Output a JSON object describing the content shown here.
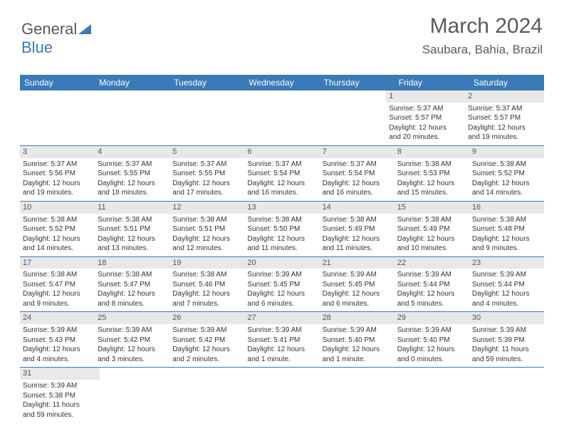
{
  "logo": {
    "text1": "General",
    "text2": "Blue"
  },
  "header": {
    "month_year": "March 2024",
    "location": "Saubara, Bahia, Brazil"
  },
  "colors": {
    "header_bg": "#3a7ab8",
    "header_text": "#ffffff",
    "daynum_bg": "#e8e8e8",
    "week_border": "#3a7ab8",
    "page_bg": "#ffffff",
    "text": "#333333"
  },
  "day_labels": [
    "Sunday",
    "Monday",
    "Tuesday",
    "Wednesday",
    "Thursday",
    "Friday",
    "Saturday"
  ],
  "weeks": [
    [
      null,
      null,
      null,
      null,
      null,
      {
        "n": "1",
        "sr": "Sunrise: 5:37 AM",
        "ss": "Sunset: 5:57 PM",
        "d1": "Daylight: 12 hours",
        "d2": "and 20 minutes."
      },
      {
        "n": "2",
        "sr": "Sunrise: 5:37 AM",
        "ss": "Sunset: 5:57 PM",
        "d1": "Daylight: 12 hours",
        "d2": "and 19 minutes."
      }
    ],
    [
      {
        "n": "3",
        "sr": "Sunrise: 5:37 AM",
        "ss": "Sunset: 5:56 PM",
        "d1": "Daylight: 12 hours",
        "d2": "and 19 minutes."
      },
      {
        "n": "4",
        "sr": "Sunrise: 5:37 AM",
        "ss": "Sunset: 5:55 PM",
        "d1": "Daylight: 12 hours",
        "d2": "and 18 minutes."
      },
      {
        "n": "5",
        "sr": "Sunrise: 5:37 AM",
        "ss": "Sunset: 5:55 PM",
        "d1": "Daylight: 12 hours",
        "d2": "and 17 minutes."
      },
      {
        "n": "6",
        "sr": "Sunrise: 5:37 AM",
        "ss": "Sunset: 5:54 PM",
        "d1": "Daylight: 12 hours",
        "d2": "and 16 minutes."
      },
      {
        "n": "7",
        "sr": "Sunrise: 5:37 AM",
        "ss": "Sunset: 5:54 PM",
        "d1": "Daylight: 12 hours",
        "d2": "and 16 minutes."
      },
      {
        "n": "8",
        "sr": "Sunrise: 5:38 AM",
        "ss": "Sunset: 5:53 PM",
        "d1": "Daylight: 12 hours",
        "d2": "and 15 minutes."
      },
      {
        "n": "9",
        "sr": "Sunrise: 5:38 AM",
        "ss": "Sunset: 5:52 PM",
        "d1": "Daylight: 12 hours",
        "d2": "and 14 minutes."
      }
    ],
    [
      {
        "n": "10",
        "sr": "Sunrise: 5:38 AM",
        "ss": "Sunset: 5:52 PM",
        "d1": "Daylight: 12 hours",
        "d2": "and 14 minutes."
      },
      {
        "n": "11",
        "sr": "Sunrise: 5:38 AM",
        "ss": "Sunset: 5:51 PM",
        "d1": "Daylight: 12 hours",
        "d2": "and 13 minutes."
      },
      {
        "n": "12",
        "sr": "Sunrise: 5:38 AM",
        "ss": "Sunset: 5:51 PM",
        "d1": "Daylight: 12 hours",
        "d2": "and 12 minutes."
      },
      {
        "n": "13",
        "sr": "Sunrise: 5:38 AM",
        "ss": "Sunset: 5:50 PM",
        "d1": "Daylight: 12 hours",
        "d2": "and 11 minutes."
      },
      {
        "n": "14",
        "sr": "Sunrise: 5:38 AM",
        "ss": "Sunset: 5:49 PM",
        "d1": "Daylight: 12 hours",
        "d2": "and 11 minutes."
      },
      {
        "n": "15",
        "sr": "Sunrise: 5:38 AM",
        "ss": "Sunset: 5:49 PM",
        "d1": "Daylight: 12 hours",
        "d2": "and 10 minutes."
      },
      {
        "n": "16",
        "sr": "Sunrise: 5:38 AM",
        "ss": "Sunset: 5:48 PM",
        "d1": "Daylight: 12 hours",
        "d2": "and 9 minutes."
      }
    ],
    [
      {
        "n": "17",
        "sr": "Sunrise: 5:38 AM",
        "ss": "Sunset: 5:47 PM",
        "d1": "Daylight: 12 hours",
        "d2": "and 9 minutes."
      },
      {
        "n": "18",
        "sr": "Sunrise: 5:38 AM",
        "ss": "Sunset: 5:47 PM",
        "d1": "Daylight: 12 hours",
        "d2": "and 8 minutes."
      },
      {
        "n": "19",
        "sr": "Sunrise: 5:38 AM",
        "ss": "Sunset: 5:46 PM",
        "d1": "Daylight: 12 hours",
        "d2": "and 7 minutes."
      },
      {
        "n": "20",
        "sr": "Sunrise: 5:39 AM",
        "ss": "Sunset: 5:45 PM",
        "d1": "Daylight: 12 hours",
        "d2": "and 6 minutes."
      },
      {
        "n": "21",
        "sr": "Sunrise: 5:39 AM",
        "ss": "Sunset: 5:45 PM",
        "d1": "Daylight: 12 hours",
        "d2": "and 6 minutes."
      },
      {
        "n": "22",
        "sr": "Sunrise: 5:39 AM",
        "ss": "Sunset: 5:44 PM",
        "d1": "Daylight: 12 hours",
        "d2": "and 5 minutes."
      },
      {
        "n": "23",
        "sr": "Sunrise: 5:39 AM",
        "ss": "Sunset: 5:44 PM",
        "d1": "Daylight: 12 hours",
        "d2": "and 4 minutes."
      }
    ],
    [
      {
        "n": "24",
        "sr": "Sunrise: 5:39 AM",
        "ss": "Sunset: 5:43 PM",
        "d1": "Daylight: 12 hours",
        "d2": "and 4 minutes."
      },
      {
        "n": "25",
        "sr": "Sunrise: 5:39 AM",
        "ss": "Sunset: 5:42 PM",
        "d1": "Daylight: 12 hours",
        "d2": "and 3 minutes."
      },
      {
        "n": "26",
        "sr": "Sunrise: 5:39 AM",
        "ss": "Sunset: 5:42 PM",
        "d1": "Daylight: 12 hours",
        "d2": "and 2 minutes."
      },
      {
        "n": "27",
        "sr": "Sunrise: 5:39 AM",
        "ss": "Sunset: 5:41 PM",
        "d1": "Daylight: 12 hours",
        "d2": "and 1 minute."
      },
      {
        "n": "28",
        "sr": "Sunrise: 5:39 AM",
        "ss": "Sunset: 5:40 PM",
        "d1": "Daylight: 12 hours",
        "d2": "and 1 minute."
      },
      {
        "n": "29",
        "sr": "Sunrise: 5:39 AM",
        "ss": "Sunset: 5:40 PM",
        "d1": "Daylight: 12 hours",
        "d2": "and 0 minutes."
      },
      {
        "n": "30",
        "sr": "Sunrise: 5:39 AM",
        "ss": "Sunset: 5:39 PM",
        "d1": "Daylight: 11 hours",
        "d2": "and 59 minutes."
      }
    ],
    [
      {
        "n": "31",
        "sr": "Sunrise: 5:39 AM",
        "ss": "Sunset: 5:38 PM",
        "d1": "Daylight: 11 hours",
        "d2": "and 59 minutes."
      },
      null,
      null,
      null,
      null,
      null,
      null
    ]
  ]
}
